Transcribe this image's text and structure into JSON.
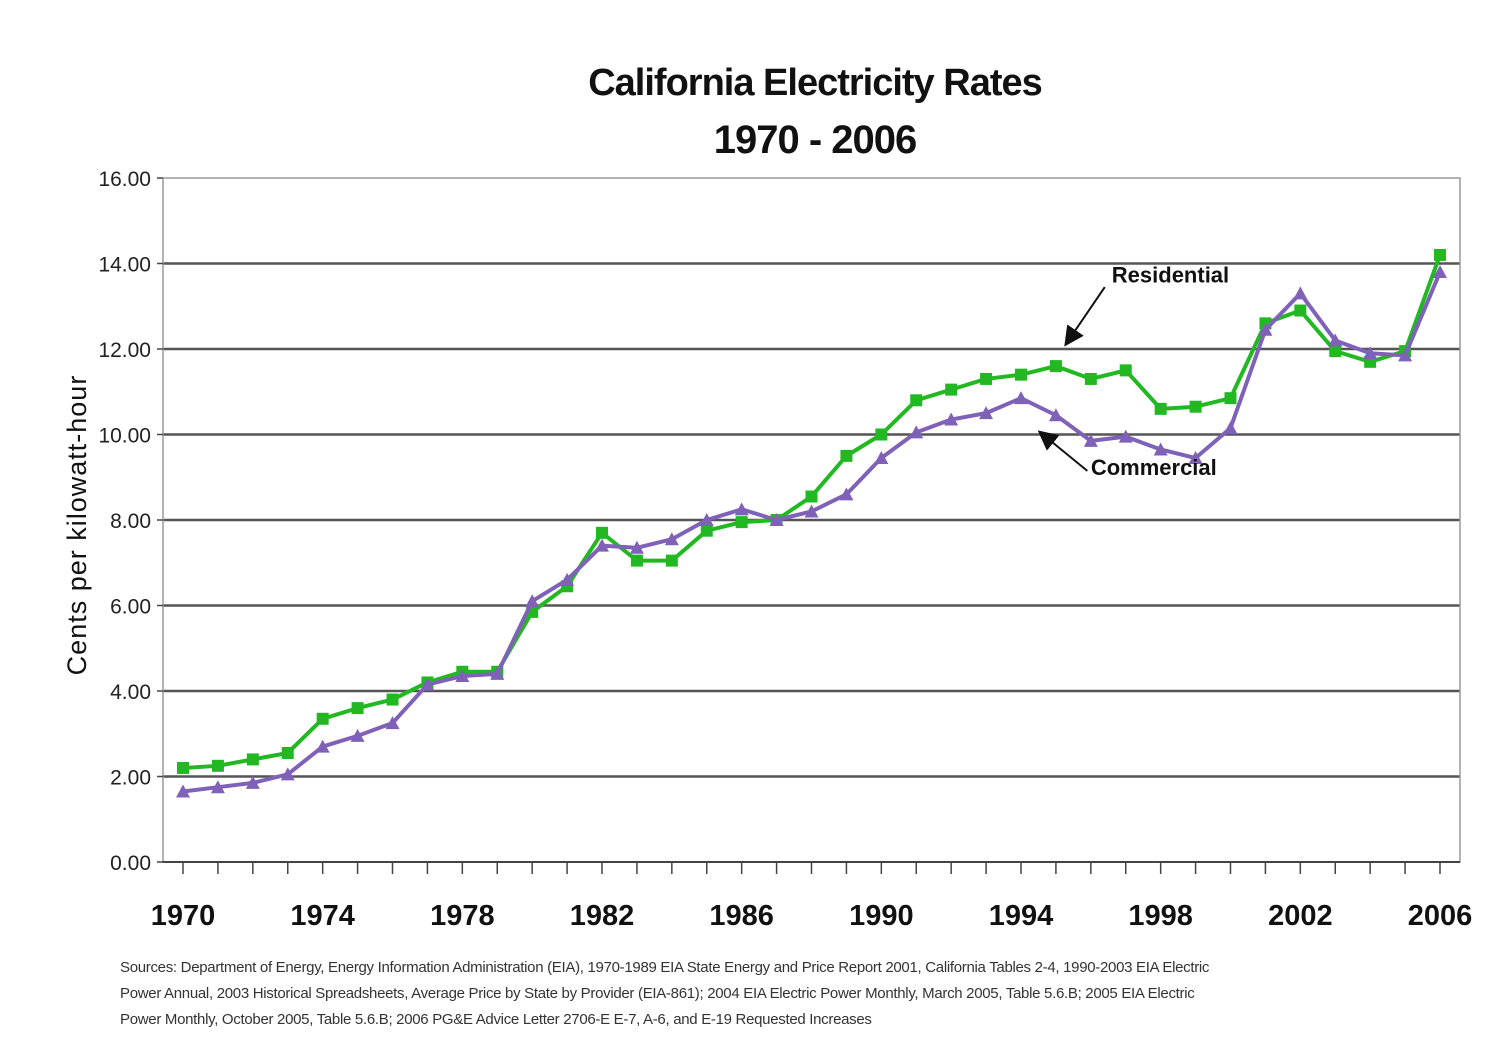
{
  "chart_data": {
    "type": "line",
    "title": "California Electricity Rates",
    "subtitle": "1970 - 2006",
    "ylabel": "Cents per kilowatt-hour",
    "xlabel": "",
    "ylim": [
      0,
      16
    ],
    "xlim": [
      1970,
      2006
    ],
    "yticks": [
      "0.00",
      "2.00",
      "4.00",
      "6.00",
      "8.00",
      "10.00",
      "12.00",
      "14.00",
      "16.00"
    ],
    "ytick_values": [
      0,
      2,
      4,
      6,
      8,
      10,
      12,
      14,
      16
    ],
    "xtick_labels": [
      "1970",
      "1974",
      "1978",
      "1982",
      "1986",
      "1990",
      "1994",
      "1998",
      "2002",
      "2006"
    ],
    "xtick_values": [
      1970,
      1974,
      1978,
      1982,
      1986,
      1990,
      1994,
      1998,
      2002,
      2006
    ],
    "grid": true,
    "x": [
      1970,
      1971,
      1972,
      1973,
      1974,
      1975,
      1976,
      1977,
      1978,
      1979,
      1980,
      1981,
      1982,
      1983,
      1984,
      1985,
      1986,
      1987,
      1988,
      1989,
      1990,
      1991,
      1992,
      1993,
      1994,
      1995,
      1996,
      1997,
      1998,
      1999,
      2000,
      2001,
      2002,
      2003,
      2004,
      2005,
      2006
    ],
    "series": [
      {
        "name": "Residential",
        "color": "#22b822",
        "marker": "square",
        "values": [
          2.2,
          2.25,
          2.4,
          2.55,
          3.35,
          3.6,
          3.8,
          4.2,
          4.45,
          4.45,
          5.85,
          6.45,
          7.7,
          7.05,
          7.05,
          7.75,
          7.95,
          8.0,
          8.55,
          9.5,
          10.0,
          10.8,
          11.05,
          11.3,
          11.4,
          11.6,
          11.3,
          11.5,
          10.6,
          10.65,
          10.85,
          12.6,
          12.9,
          11.95,
          11.7,
          11.95,
          14.2
        ]
      },
      {
        "name": "Commercial",
        "color": "#7f62b8",
        "marker": "triangle",
        "values": [
          1.65,
          1.75,
          1.85,
          2.05,
          2.7,
          2.95,
          3.25,
          4.15,
          4.35,
          4.4,
          6.1,
          6.6,
          7.4,
          7.35,
          7.55,
          8.0,
          8.25,
          8.0,
          8.2,
          8.6,
          9.45,
          10.05,
          10.35,
          10.5,
          10.85,
          10.45,
          9.85,
          9.95,
          9.65,
          9.45,
          10.15,
          12.45,
          13.3,
          12.2,
          11.9,
          11.85,
          13.8
        ]
      }
    ],
    "annotations": [
      {
        "text": "Residential",
        "series": "Residential"
      },
      {
        "text": "Commercial",
        "series": "Commercial"
      }
    ]
  },
  "source_note": {
    "line1": "Sources: Department of Energy, Energy Information Administration (EIA), 1970-1989 EIA State Energy and Price Report 2001, California Tables 2-4, 1990-2003 EIA Electric",
    "line2": "Power Annual, 2003 Historical Spreadsheets, Average Price by State by Provider (EIA-861); 2004 EIA Electric Power Monthly, March 2005, Table 5.6.B; 2005 EIA Electric",
    "line3": "Power Monthly, October 2005, Table 5.6.B; 2006 PG&E Advice Letter 2706-E E-7, A-6, and E-19 Requested Increases"
  }
}
